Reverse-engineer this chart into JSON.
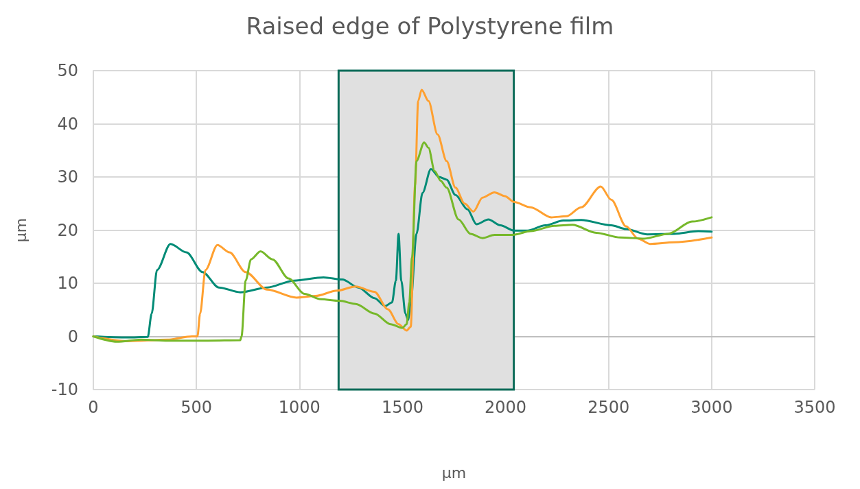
{
  "chart_data": {
    "type": "line",
    "title": "Raised edge of Polystyrene film",
    "xlabel": "µm",
    "ylabel": "µm",
    "xlim": [
      0,
      3500
    ],
    "xticks": [
      0,
      500,
      1000,
      1500,
      2000,
      2500,
      3000,
      3500
    ],
    "ylim": [
      -10,
      50
    ],
    "yticks": [
      -10,
      0,
      10,
      20,
      30,
      40,
      50
    ],
    "grid": true,
    "marker": "none",
    "line_style": "solid",
    "bands": [
      {
        "axis": "x",
        "from": 1190,
        "to": 2040,
        "color": "#e0e0e0"
      }
    ],
    "series": [
      {
        "color": "#008b76",
        "x": [
          0,
          166,
          264,
          283,
          309,
          374,
          452,
          530,
          609,
          713,
          843,
          973,
          1117,
          1208,
          1286,
          1364,
          1416,
          1449,
          1468,
          1481,
          1494,
          1514,
          1527,
          1540,
          1568,
          1597,
          1638,
          1677,
          1714,
          1757,
          1815,
          1859,
          1917,
          1975,
          2041,
          2106,
          2193,
          2280,
          2367,
          2513,
          2585,
          2688,
          2818,
          2935,
          3000
        ],
        "values": [
          0,
          -0.2,
          -0.1,
          4.3,
          12.5,
          17.4,
          15.8,
          12.1,
          9.2,
          8.3,
          9.2,
          10.5,
          11.1,
          10.7,
          9.2,
          7.2,
          5.7,
          6.4,
          10.5,
          19.3,
          10.5,
          4.3,
          3.1,
          6.4,
          19.3,
          27,
          31.5,
          30,
          29.5,
          26.6,
          23.9,
          21.1,
          22,
          20.9,
          19.9,
          19.9,
          20.9,
          21.8,
          21.9,
          20.9,
          20.2,
          19.2,
          19.3,
          19.8,
          19.7
        ]
      },
      {
        "color": "#ffa030",
        "x": [
          0,
          166,
          361,
          479,
          505,
          518,
          544,
          602,
          661,
          739,
          843,
          986,
          1077,
          1182,
          1273,
          1364,
          1429,
          1481,
          1520,
          1540,
          1561,
          1576,
          1593,
          1626,
          1670,
          1714,
          1757,
          1801,
          1844,
          1888,
          1946,
          1997,
          2041,
          2121,
          2222,
          2295,
          2367,
          2462,
          2513,
          2585,
          2643,
          2701,
          2818,
          3000
        ],
        "values": [
          0,
          -0.9,
          -0.6,
          0,
          0,
          4.3,
          12.5,
          17.2,
          15.8,
          12.1,
          8.8,
          7.3,
          7.6,
          8.6,
          9.4,
          8.4,
          5.1,
          2.3,
          1.1,
          1.8,
          28.4,
          44.3,
          46.4,
          44.3,
          38,
          33,
          28,
          25,
          23.5,
          26.1,
          27.1,
          26.4,
          25.3,
          24.3,
          22.4,
          22.6,
          24.3,
          28.2,
          25.7,
          20.7,
          18.4,
          17.4,
          17.7,
          18.6
        ]
      },
      {
        "color": "#76b82a",
        "x": [
          0,
          114,
          231,
          361,
          557,
          713,
          719,
          739,
          765,
          811,
          869,
          947,
          1025,
          1103,
          1195,
          1273,
          1364,
          1442,
          1500,
          1520,
          1533,
          1546,
          1568,
          1605,
          1626,
          1656,
          1685,
          1714,
          1772,
          1830,
          1888,
          1946,
          2034,
          2121,
          2237,
          2324,
          2440,
          2557,
          2673,
          2789,
          2905,
          3000
        ],
        "values": [
          0,
          -1,
          -0.6,
          -0.8,
          -0.8,
          -0.7,
          0,
          10.5,
          14.5,
          16,
          14.5,
          10.9,
          8,
          7,
          6.7,
          6.1,
          4.3,
          2.3,
          1.6,
          2.3,
          6.4,
          14.8,
          33,
          36.5,
          35.5,
          31.1,
          29.3,
          28,
          22,
          19.3,
          18.5,
          19.1,
          19.1,
          19.8,
          20.8,
          21,
          19.5,
          18.6,
          18.4,
          19.3,
          21.6,
          22.4
        ]
      }
    ]
  }
}
